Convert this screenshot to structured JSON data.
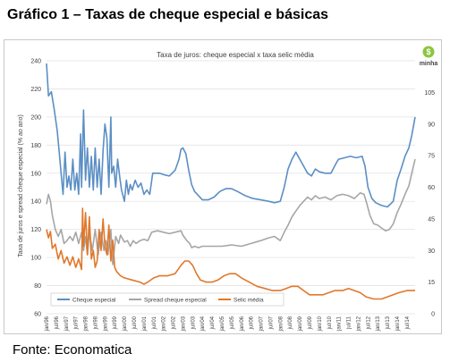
{
  "header": {
    "title": "Gráfico 1 – Taxas de cheque especial e básicas"
  },
  "footer": {
    "source": "Fonte: Economatica"
  },
  "logo": {
    "text": "minha",
    "icon": "dollar-coin-icon"
  },
  "chart_data": {
    "type": "line",
    "title": "Taxa de juros: cheque especial x taxa selic média",
    "ylabel": "Taxa de juros e spread cheque especial (% ao ano)",
    "ylim": [
      60,
      240
    ],
    "y2lim": [
      0,
      120
    ],
    "yticks": [
      60,
      80,
      100,
      120,
      140,
      160,
      180,
      200,
      220,
      240
    ],
    "y2ticks": [
      0,
      15,
      30,
      45,
      60,
      75,
      90,
      105
    ],
    "grid": true,
    "legend_position": "bottom-left",
    "x_range": [
      1996.0,
      2014.92
    ],
    "xticks": [
      "jan/96",
      "jul/96",
      "jan/97",
      "jul/97",
      "jan/98",
      "jul/98",
      "jan/99",
      "jul/99",
      "jan/00",
      "jul/00",
      "jan/01",
      "jul/01",
      "jan/02",
      "jul/02",
      "jan/03",
      "jul/03",
      "jan/04",
      "jul/04",
      "jan/05",
      "jul/05",
      "jan/06",
      "jul/06",
      "jan/07",
      "jul/07",
      "jan/08",
      "jul/08",
      "jan/09",
      "jul/09",
      "jan/10",
      "jul/10",
      "jan/11",
      "jul/11",
      "jan/12",
      "jul/12",
      "jan/13",
      "jul/13",
      "jan/14",
      "jul/14"
    ],
    "colors": {
      "cheque": "#5b8fc4",
      "spread": "#a6a6a6",
      "selic": "#e0782b"
    },
    "series": [
      {
        "name": "Cheque especial",
        "axis": "left",
        "color": "#5b8fc4",
        "points": [
          [
            1996.0,
            238
          ],
          [
            1996.1,
            215
          ],
          [
            1996.25,
            218
          ],
          [
            1996.4,
            205
          ],
          [
            1996.55,
            190
          ],
          [
            1996.65,
            175
          ],
          [
            1996.75,
            160
          ],
          [
            1996.85,
            145
          ],
          [
            1996.95,
            175
          ],
          [
            1997.05,
            150
          ],
          [
            1997.15,
            158
          ],
          [
            1997.25,
            148
          ],
          [
            1997.35,
            170
          ],
          [
            1997.45,
            148
          ],
          [
            1997.55,
            160
          ],
          [
            1997.65,
            145
          ],
          [
            1997.75,
            188
          ],
          [
            1997.8,
            150
          ],
          [
            1997.9,
            205
          ],
          [
            1998.0,
            155
          ],
          [
            1998.1,
            178
          ],
          [
            1998.2,
            150
          ],
          [
            1998.3,
            172
          ],
          [
            1998.4,
            148
          ],
          [
            1998.5,
            178
          ],
          [
            1998.6,
            150
          ],
          [
            1998.7,
            170
          ],
          [
            1998.8,
            145
          ],
          [
            1998.9,
            176
          ],
          [
            1999.0,
            195
          ],
          [
            1999.1,
            185
          ],
          [
            1999.2,
            150
          ],
          [
            1999.3,
            200
          ],
          [
            1999.35,
            160
          ],
          [
            1999.45,
            165
          ],
          [
            1999.55,
            150
          ],
          [
            1999.65,
            170
          ],
          [
            1999.75,
            158
          ],
          [
            1999.85,
            148
          ],
          [
            2000.0,
            140
          ],
          [
            2000.1,
            155
          ],
          [
            2000.2,
            145
          ],
          [
            2000.3,
            152
          ],
          [
            2000.4,
            148
          ],
          [
            2000.55,
            155
          ],
          [
            2000.7,
            150
          ],
          [
            2000.85,
            153
          ],
          [
            2001.0,
            145
          ],
          [
            2001.15,
            148
          ],
          [
            2001.3,
            145
          ],
          [
            2001.45,
            160
          ],
          [
            2001.6,
            160
          ],
          [
            2001.8,
            160
          ],
          [
            2002.0,
            159
          ],
          [
            2002.3,
            158
          ],
          [
            2002.6,
            162
          ],
          [
            2002.8,
            170
          ],
          [
            2002.9,
            177
          ],
          [
            2003.0,
            178
          ],
          [
            2003.15,
            174
          ],
          [
            2003.3,
            162
          ],
          [
            2003.45,
            152
          ],
          [
            2003.6,
            147
          ],
          [
            2003.8,
            144
          ],
          [
            2004.0,
            141
          ],
          [
            2004.3,
            141
          ],
          [
            2004.6,
            143
          ],
          [
            2004.9,
            147
          ],
          [
            2005.2,
            149
          ],
          [
            2005.5,
            149
          ],
          [
            2005.8,
            147
          ],
          [
            2006.2,
            144
          ],
          [
            2006.6,
            142
          ],
          [
            2007.0,
            141
          ],
          [
            2007.4,
            140
          ],
          [
            2007.7,
            139
          ],
          [
            2008.0,
            140
          ],
          [
            2008.2,
            150
          ],
          [
            2008.4,
            163
          ],
          [
            2008.6,
            170
          ],
          [
            2008.8,
            175
          ],
          [
            2009.0,
            170
          ],
          [
            2009.2,
            165
          ],
          [
            2009.4,
            160
          ],
          [
            2009.6,
            158
          ],
          [
            2009.8,
            163
          ],
          [
            2010.0,
            161
          ],
          [
            2010.3,
            160
          ],
          [
            2010.6,
            160
          ],
          [
            2010.9,
            168
          ],
          [
            2011.0,
            170
          ],
          [
            2011.3,
            171
          ],
          [
            2011.6,
            172
          ],
          [
            2011.9,
            171
          ],
          [
            2012.2,
            172
          ],
          [
            2012.35,
            165
          ],
          [
            2012.5,
            150
          ],
          [
            2012.7,
            142
          ],
          [
            2012.9,
            139
          ],
          [
            2013.2,
            137
          ],
          [
            2013.5,
            136
          ],
          [
            2013.8,
            140
          ],
          [
            2014.0,
            155
          ],
          [
            2014.2,
            163
          ],
          [
            2014.4,
            172
          ],
          [
            2014.6,
            178
          ],
          [
            2014.75,
            187
          ],
          [
            2014.92,
            200
          ]
        ]
      },
      {
        "name": "Spread cheque especial",
        "axis": "left",
        "color": "#a6a6a6",
        "points": [
          [
            1996.0,
            138
          ],
          [
            1996.1,
            145
          ],
          [
            1996.2,
            140
          ],
          [
            1996.3,
            130
          ],
          [
            1996.45,
            120
          ],
          [
            1996.6,
            115
          ],
          [
            1996.75,
            120
          ],
          [
            1996.9,
            110
          ],
          [
            1997.05,
            112
          ],
          [
            1997.2,
            115
          ],
          [
            1997.35,
            112
          ],
          [
            1997.5,
            118
          ],
          [
            1997.65,
            110
          ],
          [
            1997.8,
            118
          ],
          [
            1997.9,
            105
          ],
          [
            1998.0,
            115
          ],
          [
            1998.1,
            102
          ],
          [
            1998.2,
            118
          ],
          [
            1998.35,
            105
          ],
          [
            1998.5,
            120
          ],
          [
            1998.65,
            102
          ],
          [
            1998.8,
            118
          ],
          [
            1998.95,
            105
          ],
          [
            1999.05,
            112
          ],
          [
            1999.15,
            102
          ],
          [
            1999.3,
            120
          ],
          [
            1999.4,
            95
          ],
          [
            1999.55,
            115
          ],
          [
            1999.7,
            110
          ],
          [
            1999.8,
            116
          ],
          [
            2000.0,
            111
          ],
          [
            2000.15,
            112
          ],
          [
            2000.3,
            108
          ],
          [
            2000.45,
            112
          ],
          [
            2000.6,
            110
          ],
          [
            2000.8,
            112
          ],
          [
            2001.0,
            113
          ],
          [
            2001.2,
            112
          ],
          [
            2001.4,
            118
          ],
          [
            2001.7,
            119
          ],
          [
            2002.0,
            118
          ],
          [
            2002.3,
            117
          ],
          [
            2002.6,
            118
          ],
          [
            2002.9,
            119
          ],
          [
            2003.0,
            116
          ],
          [
            2003.2,
            112
          ],
          [
            2003.35,
            110
          ],
          [
            2003.45,
            107
          ],
          [
            2003.6,
            108
          ],
          [
            2003.8,
            107
          ],
          [
            2004.0,
            108
          ],
          [
            2004.5,
            108
          ],
          [
            2005.0,
            108
          ],
          [
            2005.5,
            109
          ],
          [
            2006.0,
            108
          ],
          [
            2006.5,
            110
          ],
          [
            2007.0,
            112
          ],
          [
            2007.4,
            114
          ],
          [
            2007.7,
            115
          ],
          [
            2008.0,
            112
          ],
          [
            2008.2,
            118
          ],
          [
            2008.4,
            123
          ],
          [
            2008.6,
            129
          ],
          [
            2008.8,
            133
          ],
          [
            2009.0,
            137
          ],
          [
            2009.2,
            140
          ],
          [
            2009.4,
            143
          ],
          [
            2009.6,
            141
          ],
          [
            2009.8,
            144
          ],
          [
            2010.0,
            142
          ],
          [
            2010.3,
            143
          ],
          [
            2010.6,
            141
          ],
          [
            2010.9,
            144
          ],
          [
            2011.2,
            145
          ],
          [
            2011.5,
            144
          ],
          [
            2011.8,
            142
          ],
          [
            2012.1,
            146
          ],
          [
            2012.3,
            145
          ],
          [
            2012.45,
            138
          ],
          [
            2012.6,
            130
          ],
          [
            2012.8,
            124
          ],
          [
            2013.0,
            123
          ],
          [
            2013.2,
            121
          ],
          [
            2013.4,
            119
          ],
          [
            2013.6,
            120
          ],
          [
            2013.8,
            124
          ],
          [
            2014.0,
            132
          ],
          [
            2014.2,
            138
          ],
          [
            2014.4,
            145
          ],
          [
            2014.6,
            151
          ],
          [
            2014.75,
            160
          ],
          [
            2014.92,
            170
          ]
        ]
      },
      {
        "name": "Selic média",
        "axis": "right",
        "color": "#e0782b",
        "points": [
          [
            1996.0,
            40
          ],
          [
            1996.1,
            36
          ],
          [
            1996.2,
            39
          ],
          [
            1996.3,
            31
          ],
          [
            1996.45,
            33
          ],
          [
            1996.6,
            26
          ],
          [
            1996.75,
            30
          ],
          [
            1996.9,
            24
          ],
          [
            1997.05,
            27
          ],
          [
            1997.2,
            23
          ],
          [
            1997.35,
            27
          ],
          [
            1997.5,
            22
          ],
          [
            1997.65,
            26
          ],
          [
            1997.8,
            21
          ],
          [
            1997.85,
            50
          ],
          [
            1997.9,
            32
          ],
          [
            1998.0,
            48
          ],
          [
            1998.1,
            28
          ],
          [
            1998.2,
            46
          ],
          [
            1998.3,
            26
          ],
          [
            1998.4,
            30
          ],
          [
            1998.5,
            22
          ],
          [
            1998.6,
            25
          ],
          [
            1998.7,
            40
          ],
          [
            1998.8,
            30
          ],
          [
            1998.9,
            45
          ],
          [
            1999.0,
            32
          ],
          [
            1999.1,
            28
          ],
          [
            1999.2,
            42
          ],
          [
            1999.3,
            25
          ],
          [
            1999.4,
            35
          ],
          [
            1999.5,
            22
          ],
          [
            1999.6,
            20
          ],
          [
            1999.8,
            18
          ],
          [
            2000.0,
            17
          ],
          [
            2000.4,
            16
          ],
          [
            2000.8,
            15
          ],
          [
            2001.0,
            14
          ],
          [
            2001.2,
            15
          ],
          [
            2001.5,
            17
          ],
          [
            2001.8,
            18
          ],
          [
            2002.2,
            18
          ],
          [
            2002.6,
            19
          ],
          [
            2002.9,
            23
          ],
          [
            2003.1,
            25
          ],
          [
            2003.3,
            25
          ],
          [
            2003.5,
            23
          ],
          [
            2003.7,
            19
          ],
          [
            2003.9,
            16
          ],
          [
            2004.2,
            15
          ],
          [
            2004.5,
            15
          ],
          [
            2004.8,
            16
          ],
          [
            2005.1,
            18
          ],
          [
            2005.4,
            19
          ],
          [
            2005.7,
            19
          ],
          [
            2006.0,
            17
          ],
          [
            2006.4,
            15
          ],
          [
            2006.8,
            13
          ],
          [
            2007.2,
            12
          ],
          [
            2007.6,
            11
          ],
          [
            2008.0,
            11
          ],
          [
            2008.3,
            12
          ],
          [
            2008.6,
            13
          ],
          [
            2008.9,
            13
          ],
          [
            2009.2,
            11
          ],
          [
            2009.5,
            9
          ],
          [
            2009.8,
            9
          ],
          [
            2010.2,
            9
          ],
          [
            2010.5,
            10
          ],
          [
            2010.8,
            11
          ],
          [
            2011.2,
            11
          ],
          [
            2011.5,
            12
          ],
          [
            2011.8,
            11
          ],
          [
            2012.1,
            10
          ],
          [
            2012.4,
            8
          ],
          [
            2012.8,
            7
          ],
          [
            2013.2,
            7
          ],
          [
            2013.5,
            8
          ],
          [
            2013.8,
            9
          ],
          [
            2014.1,
            10
          ],
          [
            2014.5,
            11
          ],
          [
            2014.8,
            11
          ],
          [
            2014.92,
            11
          ]
        ]
      }
    ]
  }
}
